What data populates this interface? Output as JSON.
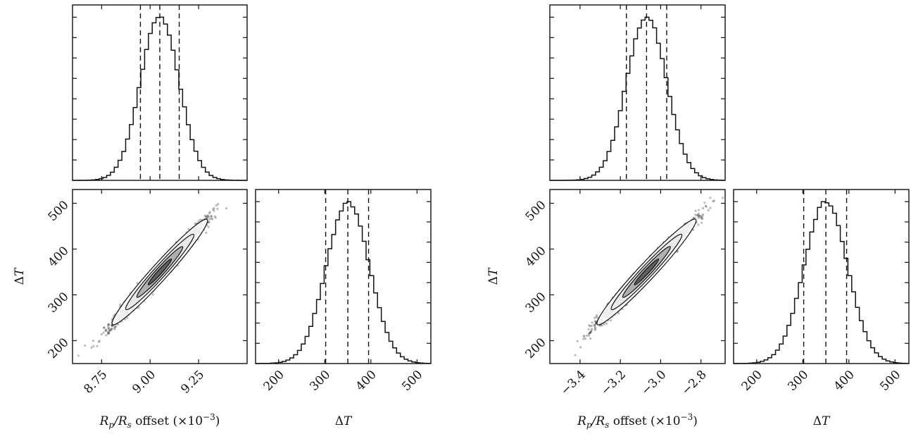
{
  "chart_data": [
    {
      "type": "corner",
      "xlabel": "R_p/R_s offset (×10⁻³)",
      "xlabel_parts": {
        "main": "R",
        "sub1": "p",
        "slash": "/R",
        "sub2": "s",
        "rest": " offset (×10",
        "sup": "−3",
        "close": ")"
      },
      "ylabel": "ΔT",
      "param1": {
        "range": [
          8.6,
          9.5
        ],
        "ticks": [
          8.75,
          9.0,
          9.25
        ],
        "tick_labels": [
          "8.75",
          "9.00",
          "9.25"
        ],
        "quantiles": [
          8.95,
          9.05,
          9.15
        ],
        "mean": 9.05,
        "sd": 0.1
      },
      "param2": {
        "label": "ΔT",
        "range": [
          150,
          530
        ],
        "ticks": [
          200,
          300,
          400,
          500
        ],
        "tick_labels": [
          "200",
          "300",
          "400",
          "500"
        ],
        "quantiles": [
          302,
          350,
          395
        ],
        "mean": 350,
        "sd": 47
      },
      "correlation": 0.985
    },
    {
      "type": "corner",
      "xlabel": "R_p/R_s offset (×10⁻³)",
      "xlabel_parts": {
        "main": "R",
        "sub1": "p",
        "slash": "/R",
        "sub2": "s",
        "rest": " offset (×10",
        "sup": "−3",
        "close": ")"
      },
      "ylabel": "ΔT",
      "param1": {
        "range": [
          -3.55,
          -2.68
        ],
        "ticks": [
          -3.4,
          -3.2,
          -3.0,
          -2.8
        ],
        "tick_labels": [
          "−3.4",
          "−3.2",
          "−3.0",
          "−2.8"
        ],
        "quantiles": [
          -3.17,
          -3.07,
          -2.97
        ],
        "mean": -3.07,
        "sd": 0.1
      },
      "param2": {
        "label": "ΔT",
        "range": [
          150,
          530
        ],
        "ticks": [
          200,
          300,
          400,
          500
        ],
        "tick_labels": [
          "200",
          "300",
          "400",
          "500"
        ],
        "quantiles": [
          302,
          350,
          395
        ],
        "mean": 350,
        "sd": 47
      },
      "correlation": 0.985
    }
  ]
}
